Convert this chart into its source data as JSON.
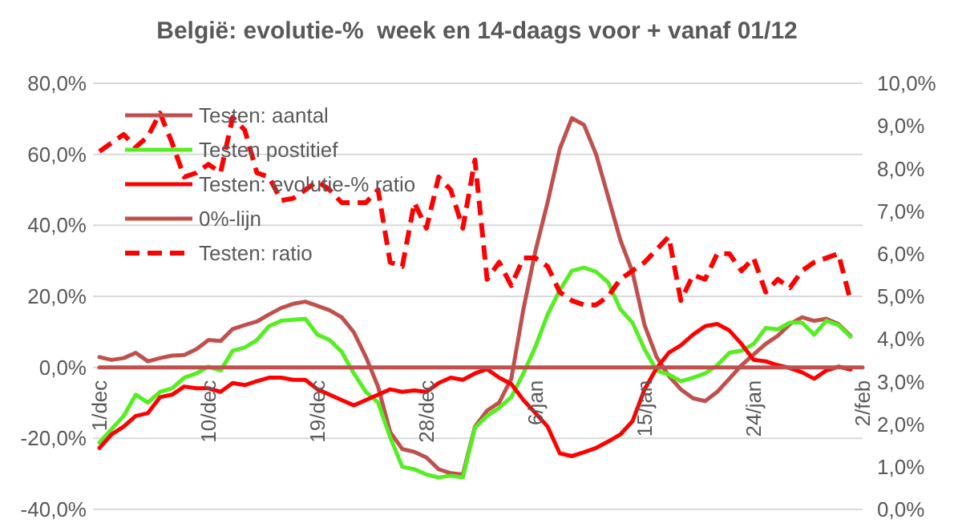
{
  "chart_data": {
    "type": "line",
    "title": "België: evolutie-%  week en 14-daags voor + vanaf 01/12",
    "categories": [
      "1/dec",
      null,
      null,
      null,
      null,
      null,
      null,
      null,
      null,
      "10/dec",
      null,
      null,
      null,
      null,
      null,
      null,
      null,
      null,
      "19/dec",
      null,
      null,
      null,
      null,
      null,
      null,
      null,
      null,
      "28/dec",
      null,
      null,
      null,
      null,
      null,
      null,
      null,
      null,
      "6/jan",
      null,
      null,
      null,
      null,
      null,
      null,
      null,
      null,
      "15/jan",
      null,
      null,
      null,
      null,
      null,
      null,
      null,
      null,
      "24/jan",
      null,
      null,
      null,
      null,
      null,
      null,
      null,
      null,
      "2/feb"
    ],
    "series": [
      {
        "name": "Testen: aantal",
        "color": "#c0504d",
        "values": [
          2.9,
          2.1,
          2.6,
          4.1,
          1.7,
          2.6,
          3.3,
          3.5,
          5.1,
          7.7,
          7.4,
          10.8,
          11.9,
          12.9,
          14.9,
          16.7,
          17.9,
          18.5,
          17.3,
          16.1,
          14.1,
          9.9,
          2.9,
          -5.4,
          -18.2,
          -23,
          -23.8,
          -25.4,
          -28.7,
          -29.8,
          -30.2,
          -16.7,
          -12.2,
          -9.9,
          -3.2,
          16.4,
          32.9,
          46.5,
          61.5,
          70.2,
          68.3,
          60,
          48,
          35.9,
          26.9,
          11.9,
          2.9,
          -2.4,
          -6.2,
          -8.7,
          -9.5,
          -6.9,
          -3.2,
          0.6,
          3.6,
          6.6,
          8.9,
          12.2,
          14.1,
          13.1,
          13.7,
          12.2,
          8.9,
          null
        ]
      },
      {
        "name": "Testen postitief",
        "color": "#55ee22",
        "values": [
          -21.2,
          -17.4,
          -13.7,
          -7.7,
          -9.9,
          -6.9,
          -5.9,
          -2.9,
          -1.7,
          0.2,
          -0.9,
          4.7,
          5.6,
          7.7,
          11.6,
          13.1,
          13.4,
          13.7,
          9.2,
          7.7,
          4.4,
          -1.7,
          -6.9,
          -9.9,
          -19.7,
          -28,
          -28.7,
          -30.2,
          -31,
          -30.5,
          -31,
          -17,
          -13.7,
          -11.4,
          -8.4,
          -1.7,
          5.9,
          14.9,
          21.7,
          27.2,
          28.1,
          26.9,
          23.9,
          16.4,
          12.6,
          5.1,
          -0.9,
          -2,
          -3.9,
          -2.9,
          -1.7,
          0.6,
          4.1,
          4.7,
          6.6,
          11.1,
          10.7,
          12.6,
          12.6,
          9.2,
          13.1,
          11.9,
          8.6,
          null
        ]
      },
      {
        "name": "Testen: evolutie-% ratio",
        "color": "#ff0000",
        "values": [
          -22.7,
          -18.9,
          -16.7,
          -13.7,
          -12.9,
          -8.4,
          -7.7,
          -5.4,
          -5.9,
          -5.9,
          -6.9,
          -4.4,
          -5,
          -3.9,
          -2.9,
          -2.9,
          -3.5,
          -3.5,
          -6.2,
          -7.7,
          -9.2,
          -10.7,
          -9.2,
          -7.7,
          -6.2,
          -6.9,
          -6.5,
          -6.9,
          -4.4,
          -2.9,
          -3.5,
          -1.7,
          -0.5,
          -2.9,
          -4.7,
          -9.2,
          -12.9,
          -16.7,
          -24.2,
          -25,
          -23.9,
          -22.7,
          -20.9,
          -18.9,
          -15.2,
          -6.2,
          -0.2,
          4.1,
          6.2,
          9.2,
          11.6,
          12.2,
          10.4,
          6.6,
          2.1,
          1.7,
          0.6,
          -0.2,
          -1.4,
          -3.2,
          -0.9,
          0.2,
          -0.6,
          null
        ]
      },
      {
        "name": "0%-lijn",
        "color": "#c0504d",
        "values": [
          0,
          0,
          0,
          0,
          0,
          0,
          0,
          0,
          0,
          0,
          0,
          0,
          0,
          0,
          0,
          0,
          0,
          0,
          0,
          0,
          0,
          0,
          0,
          0,
          0,
          0,
          0,
          0,
          0,
          0,
          0,
          0,
          0,
          0,
          0,
          0,
          0,
          0,
          0,
          0,
          0,
          0,
          0,
          0,
          0,
          0,
          0,
          0,
          0,
          0,
          0,
          0,
          0,
          0,
          0,
          0,
          0,
          0,
          0,
          0,
          0,
          0,
          0,
          0
        ]
      },
      {
        "name": "Testen: ratio",
        "color": "#ff0000",
        "axis": "y2",
        "line_style": "dashed",
        "values": [
          8.4,
          8.6,
          8.8,
          8.5,
          8.75,
          9.3,
          8.6,
          7.8,
          7.9,
          8.1,
          7.9,
          9.2,
          8.9,
          7.9,
          7.8,
          7.25,
          7.3,
          7.5,
          7.7,
          7.5,
          7.2,
          7.2,
          7.2,
          7.5,
          5.8,
          5.7,
          7.2,
          6.6,
          7.8,
          7.5,
          6.6,
          8.2,
          5.4,
          5.8,
          5.25,
          5.9,
          5.9,
          5.7,
          5.1,
          4.9,
          4.8,
          4.8,
          5,
          5.4,
          5.6,
          5.8,
          6.1,
          6.4,
          4.9,
          5.5,
          5.4,
          6,
          6,
          5.6,
          5.9,
          5.1,
          5.4,
          5.2,
          5.6,
          5.8,
          5.9,
          6,
          4.9,
          null
        ]
      }
    ],
    "ylim": [
      -40,
      80
    ],
    "yticks": [
      {
        "value": -40,
        "label": "-40,0%"
      },
      {
        "value": -20,
        "label": "-20,0%"
      },
      {
        "value": 0,
        "label": "0,0%"
      },
      {
        "value": 20,
        "label": "20,0%"
      },
      {
        "value": 40,
        "label": "40,0%"
      },
      {
        "value": 60,
        "label": "60,0%"
      },
      {
        "value": 80,
        "label": "80,0%"
      }
    ],
    "y2lim": [
      0,
      10
    ],
    "y2ticks": [
      {
        "value": 0,
        "label": "0,0%"
      },
      {
        "value": 1,
        "label": "1,0%"
      },
      {
        "value": 2,
        "label": "2,0%"
      },
      {
        "value": 3,
        "label": "3,0%"
      },
      {
        "value": 4,
        "label": "4,0%"
      },
      {
        "value": 5,
        "label": "5,0%"
      },
      {
        "value": 6,
        "label": "6,0%"
      },
      {
        "value": 7,
        "label": "7,0%"
      },
      {
        "value": 8,
        "label": "8,0%"
      },
      {
        "value": 9,
        "label": "9,0%"
      },
      {
        "value": 10,
        "label": "10,0%"
      }
    ],
    "grid": "y",
    "legend": "top left",
    "line_style": "solid",
    "marker": "none"
  }
}
